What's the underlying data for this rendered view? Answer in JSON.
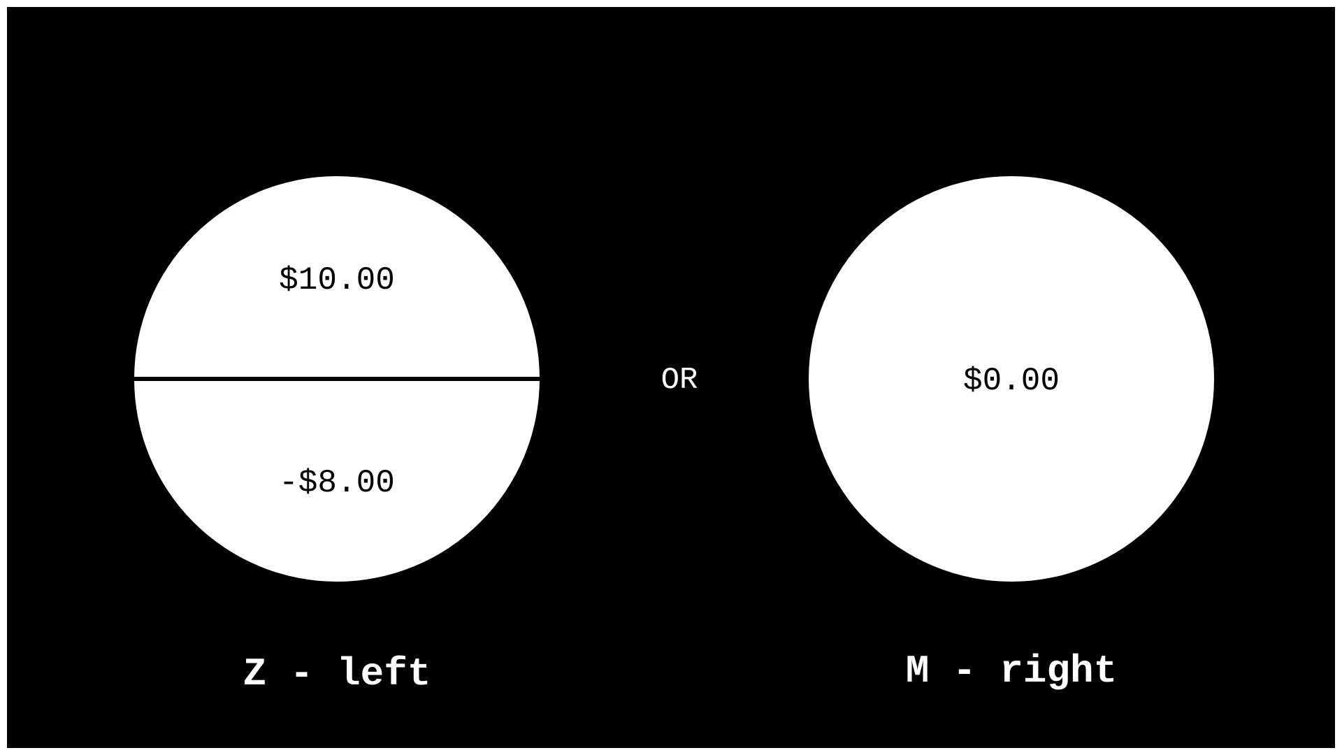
{
  "left_option": {
    "top_amount": "$10.00",
    "bottom_amount": "-$8.00",
    "key_label": "Z - left"
  },
  "separator": {
    "label": "OR"
  },
  "right_option": {
    "amount": "$0.00",
    "key_label": "M - right"
  },
  "colors": {
    "background": "#000000",
    "circle_fill": "#ffffff",
    "text_on_dark": "#ffffff",
    "text_on_light": "#000000"
  }
}
